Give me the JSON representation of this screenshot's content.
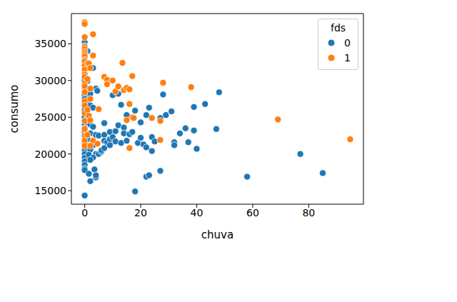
{
  "chart_data": {
    "type": "scatter",
    "x_label": "chuva",
    "y_label": "consumo",
    "legend_title": "fds",
    "legend": "upper right",
    "grid": false,
    "xlim": [
      -4.74,
      99.54
    ],
    "xticks": [
      0,
      20,
      40,
      60,
      80
    ],
    "ylim": [
      13163,
      39117
    ],
    "yticks": [
      15000,
      20000,
      25000,
      30000,
      35000
    ],
    "series": [
      {
        "name": "0",
        "color": "#1f77b4",
        "marker": "circle",
        "x": [
          0,
          0,
          0,
          0,
          0,
          0,
          0,
          0,
          0,
          0,
          0,
          0,
          0,
          0,
          0,
          0,
          0,
          0,
          0,
          0,
          0,
          0,
          0,
          0,
          0,
          0,
          0,
          0,
          0,
          0,
          0,
          0,
          0,
          0,
          0,
          0,
          0,
          1,
          1.5,
          3,
          1,
          2,
          4,
          4.5,
          1,
          2,
          3,
          1,
          2,
          3,
          2,
          4,
          1,
          3,
          2,
          1.5,
          4,
          3,
          2,
          3.5,
          1.5,
          4,
          2,
          4,
          5,
          5,
          6,
          6,
          7,
          7,
          7,
          7,
          8,
          9,
          9,
          9,
          10,
          10,
          11,
          11,
          12,
          12,
          13,
          13,
          14,
          14,
          15,
          15,
          16,
          17,
          18,
          18,
          19,
          20,
          20,
          21,
          22,
          22,
          22,
          23,
          23,
          24,
          24,
          25,
          27,
          27,
          28,
          29,
          31,
          32,
          32,
          34,
          36,
          37,
          39,
          39,
          40,
          43,
          47,
          48,
          58,
          77,
          85
        ],
        "values": [
          35200,
          34700,
          34100,
          33600,
          33000,
          32500,
          32000,
          31500,
          31000,
          30500,
          30000,
          29500,
          29000,
          28500,
          28000,
          27500,
          27000,
          26500,
          26000,
          25500,
          25000,
          24500,
          24000,
          23500,
          23000,
          22500,
          22000,
          21500,
          21000,
          20500,
          20000,
          19500,
          19000,
          18500,
          18000,
          17800,
          14343,
          34000,
          31800,
          31700,
          29900,
          28200,
          28900,
          28600,
          27000,
          26600,
          26300,
          25300,
          24000,
          23700,
          22800,
          22600,
          22000,
          21200,
          20600,
          19900,
          20000,
          19500,
          19200,
          17900,
          17300,
          16800,
          16300,
          17100,
          22500,
          20000,
          20300,
          20500,
          24200,
          22600,
          21800,
          20800,
          21600,
          23000,
          22000,
          21200,
          28000,
          22300,
          21700,
          23100,
          28200,
          23900,
          26700,
          21500,
          23600,
          22800,
          21800,
          25300,
          22700,
          23000,
          25900,
          14900,
          21500,
          24300,
          22200,
          21300,
          25300,
          20900,
          16900,
          26300,
          17100,
          20400,
          22300,
          21700,
          24900,
          17700,
          28100,
          25300,
          25800,
          21600,
          21200,
          22800,
          23500,
          21600,
          26400,
          23200,
          20700,
          26800,
          23400,
          28400,
          16900,
          20000,
          17400
        ]
      },
      {
        "name": "1",
        "color": "#ff7f0e",
        "marker": "circle",
        "x": [
          0,
          0,
          0,
          0,
          0,
          0,
          0,
          0,
          0,
          0,
          0,
          0,
          0,
          0,
          0,
          0,
          0,
          0,
          0,
          0,
          0,
          0,
          0,
          0,
          0,
          1,
          1.5,
          2,
          1,
          2,
          3,
          3,
          2,
          1,
          1.5,
          2,
          1,
          3,
          2,
          5,
          4.6,
          7,
          8,
          8,
          10,
          11,
          12,
          13.5,
          14,
          15,
          16,
          17,
          17,
          16,
          15,
          16,
          17.5,
          24,
          27,
          27,
          28,
          38,
          69,
          94.8
        ],
        "values": [
          37937,
          37700,
          35900,
          34600,
          34300,
          33900,
          33600,
          33300,
          32800,
          32600,
          32000,
          31500,
          30800,
          30500,
          29600,
          29200,
          28400,
          27200,
          26600,
          25600,
          24500,
          23400,
          22500,
          21800,
          21100,
          32400,
          32300,
          31700,
          30200,
          28900,
          33400,
          36300,
          27500,
          26000,
          25200,
          24600,
          22600,
          21800,
          21100,
          26100,
          21400,
          30500,
          30100,
          29500,
          30000,
          28500,
          29200,
          32400,
          28700,
          29000,
          28800,
          30600,
          25000,
          26800,
          24600,
          20800,
          24900,
          24900,
          24500,
          21900,
          29700,
          29100,
          24700,
          22000
        ]
      }
    ]
  }
}
